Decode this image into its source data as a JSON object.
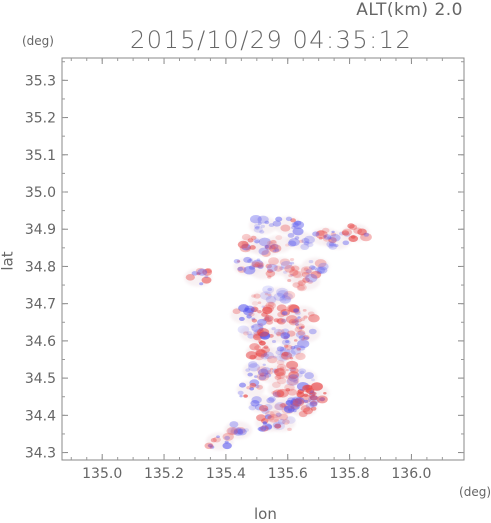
{
  "header": {
    "alt_label": "ALT(km) 2.0",
    "timestamp": "2015/10/29 04:35:12"
  },
  "chart_data": {
    "type": "heatmap",
    "title": "2015/10/29 04:35:12",
    "subtitle": "ALT(km) 2.0",
    "xlabel": "lon",
    "ylabel": "lat",
    "x_unit": "(deg)",
    "y_unit": "(deg)",
    "xlim": [
      134.87,
      136.17
    ],
    "ylim": [
      34.28,
      35.36
    ],
    "x_ticks": [
      135.0,
      135.2,
      135.4,
      135.6,
      135.8,
      136.0
    ],
    "x_tick_labels": [
      "135.0",
      "135.2",
      "135.4",
      "135.6",
      "135.8",
      "136.0"
    ],
    "y_ticks": [
      34.3,
      34.4,
      34.5,
      34.6,
      34.7,
      34.8,
      34.9,
      35.0,
      35.1,
      35.2,
      35.3
    ],
    "y_tick_labels": [
      "34.3",
      "34.4",
      "34.5",
      "34.6",
      "34.7",
      "34.8",
      "34.9",
      "35.0",
      "35.1",
      "35.2",
      "35.3"
    ],
    "grid": false,
    "colors": {
      "positive": "#e84a4a",
      "negative": "#5a5af0",
      "neutral": "#f3e6ea"
    },
    "blobs": [
      {
        "lon": 135.52,
        "lat": 34.91,
        "v": -0.4
      },
      {
        "lon": 135.6,
        "lat": 34.91,
        "v": -0.6
      },
      {
        "lon": 135.49,
        "lat": 34.86,
        "v": 0.6
      },
      {
        "lon": 135.53,
        "lat": 34.85,
        "v": -0.5
      },
      {
        "lon": 135.57,
        "lat": 34.86,
        "v": 0.3
      },
      {
        "lon": 135.64,
        "lat": 34.87,
        "v": -0.4
      },
      {
        "lon": 135.72,
        "lat": 34.88,
        "v": 0.5
      },
      {
        "lon": 135.76,
        "lat": 34.87,
        "v": -0.5
      },
      {
        "lon": 135.82,
        "lat": 34.89,
        "v": 0.7
      },
      {
        "lon": 135.47,
        "lat": 34.8,
        "v": -0.5
      },
      {
        "lon": 135.52,
        "lat": 34.79,
        "v": 0.5
      },
      {
        "lon": 135.58,
        "lat": 34.8,
        "v": -0.3
      },
      {
        "lon": 135.63,
        "lat": 34.78,
        "v": 0.4
      },
      {
        "lon": 135.69,
        "lat": 34.8,
        "v": -0.4
      },
      {
        "lon": 135.66,
        "lat": 34.76,
        "v": 0.5
      },
      {
        "lon": 135.31,
        "lat": 34.77,
        "v": 0.6
      },
      {
        "lon": 135.52,
        "lat": 34.71,
        "v": 0.3
      },
      {
        "lon": 135.57,
        "lat": 34.72,
        "v": -0.3
      },
      {
        "lon": 135.46,
        "lat": 34.67,
        "v": -0.6
      },
      {
        "lon": 135.51,
        "lat": 34.66,
        "v": 0.5
      },
      {
        "lon": 135.56,
        "lat": 34.67,
        "v": 0.7
      },
      {
        "lon": 135.61,
        "lat": 34.66,
        "v": -0.5
      },
      {
        "lon": 135.65,
        "lat": 34.67,
        "v": 0.6
      },
      {
        "lon": 135.49,
        "lat": 34.62,
        "v": -0.4
      },
      {
        "lon": 135.53,
        "lat": 34.61,
        "v": 0.8
      },
      {
        "lon": 135.58,
        "lat": 34.62,
        "v": 0.4
      },
      {
        "lon": 135.62,
        "lat": 34.6,
        "v": -0.6
      },
      {
        "lon": 135.66,
        "lat": 34.62,
        "v": 0.5
      },
      {
        "lon": 135.51,
        "lat": 34.57,
        "v": 0.6
      },
      {
        "lon": 135.56,
        "lat": 34.56,
        "v": -0.4
      },
      {
        "lon": 135.61,
        "lat": 34.57,
        "v": 0.5
      },
      {
        "lon": 135.5,
        "lat": 34.52,
        "v": -0.5
      },
      {
        "lon": 135.55,
        "lat": 34.51,
        "v": 0.4
      },
      {
        "lon": 135.6,
        "lat": 34.52,
        "v": 0.6
      },
      {
        "lon": 135.65,
        "lat": 34.5,
        "v": -0.4
      },
      {
        "lon": 135.48,
        "lat": 34.47,
        "v": -0.7
      },
      {
        "lon": 135.58,
        "lat": 34.47,
        "v": 0.5
      },
      {
        "lon": 135.66,
        "lat": 34.46,
        "v": 0.8
      },
      {
        "lon": 135.69,
        "lat": 34.46,
        "v": 0.7
      },
      {
        "lon": 135.52,
        "lat": 34.43,
        "v": -0.5
      },
      {
        "lon": 135.57,
        "lat": 34.42,
        "v": 0.4
      },
      {
        "lon": 135.62,
        "lat": 34.43,
        "v": -0.8
      },
      {
        "lon": 135.65,
        "lat": 34.42,
        "v": 0.6
      },
      {
        "lon": 135.54,
        "lat": 34.38,
        "v": -0.7
      },
      {
        "lon": 135.58,
        "lat": 34.38,
        "v": 0.3
      },
      {
        "lon": 135.44,
        "lat": 34.36,
        "v": -0.4
      },
      {
        "lon": 135.38,
        "lat": 34.33,
        "v": -0.6
      }
    ]
  }
}
